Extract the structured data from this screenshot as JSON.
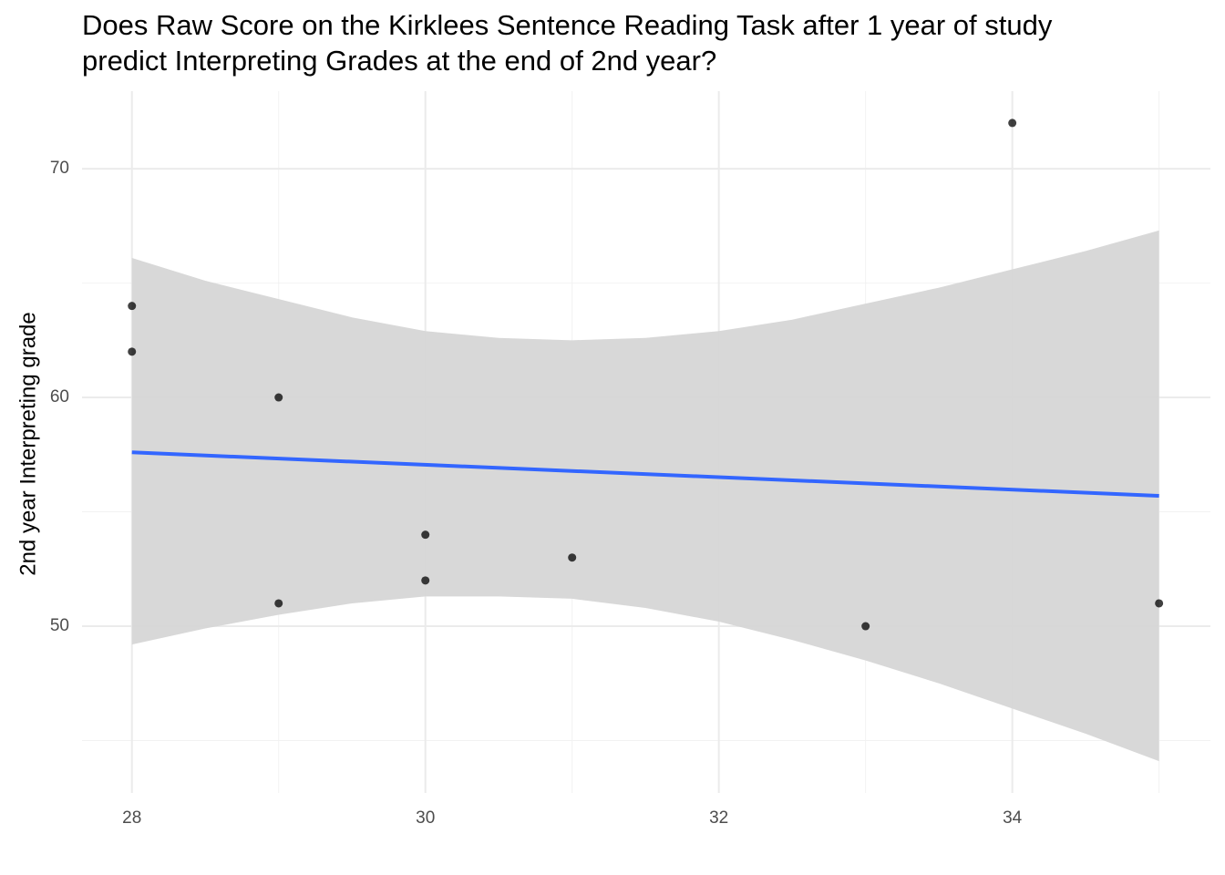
{
  "chart_data": {
    "type": "scatter",
    "title": [
      "Does Raw Score on the Kirklees Sentence Reading Task after 1 year of study",
      "predict Interpreting Grades at the end of 2nd year?"
    ],
    "y_label": "2nd year Interpreting grade",
    "xlim": [
      27.66,
      35.35
    ],
    "ylim": [
      42.71,
      73.39
    ],
    "xticks": [
      28,
      30,
      32,
      34
    ],
    "yticks": [
      50,
      60,
      70
    ],
    "xminorticks": [
      29,
      31,
      33,
      35
    ],
    "yminorticks": [
      45,
      55,
      65
    ],
    "grid": true,
    "points": {
      "color": "#000000",
      "x": [
        28,
        28,
        29,
        29,
        30,
        30,
        31,
        33,
        34,
        35
      ],
      "y": [
        64,
        62,
        60,
        51,
        54,
        52,
        53,
        50,
        72,
        51
      ]
    },
    "fit": {
      "color": "#3366ff",
      "x": [
        28,
        35
      ],
      "y": [
        57.6,
        55.7
      ]
    },
    "band": {
      "color": "#d6d6d6",
      "x": [
        28,
        28.5,
        29,
        29.5,
        30,
        30.5,
        31,
        31.5,
        32,
        32.5,
        33,
        33.5,
        34,
        34.5,
        35
      ],
      "upper": [
        66.1,
        65.1,
        64.3,
        63.5,
        62.9,
        62.6,
        62.5,
        62.6,
        62.9,
        63.4,
        64.1,
        64.8,
        65.6,
        66.4,
        67.3
      ],
      "lower": [
        49.2,
        49.9,
        50.5,
        51.0,
        51.3,
        51.3,
        51.2,
        50.8,
        50.2,
        49.4,
        48.5,
        47.5,
        46.4,
        45.3,
        44.1
      ]
    }
  }
}
